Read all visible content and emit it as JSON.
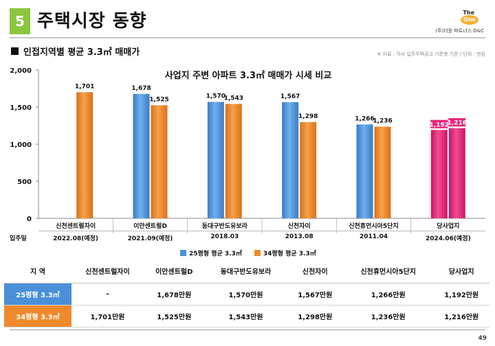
{
  "header": {
    "section_number": "5",
    "title": "주택시장 동향",
    "logo": {
      "line1": "The",
      "line2": "One",
      "line3": "(주)더원 파트너스 D&C"
    }
  },
  "subtitle": "인접지역별 평균 3.3㎡ 매매가",
  "source_note": "※ 자료 : 각사 입주주택공고 기준층 기준 / 단위 : 만원",
  "colors": {
    "series25": "#4a90d9",
    "series34": "#ef8a2c",
    "highlight": "#e8257a",
    "badge": "#8cc63f"
  },
  "chart_data": {
    "type": "bar",
    "title": "사업지 주변 아파트 3.3㎡ 매매가 시세 비교",
    "categories": [
      "신천센트럴자이",
      "이안센트럴D",
      "동대구반도유보라",
      "신천자이",
      "신천휴먼시아5단지",
      "당사업지"
    ],
    "series": [
      {
        "name": "25평형 평균 3.3㎡",
        "values": [
          null,
          1678,
          1570,
          1567,
          1266,
          1192
        ]
      },
      {
        "name": "34평형 평균 3.3㎡",
        "values": [
          1701,
          1525,
          1543,
          1298,
          1236,
          1216
        ]
      }
    ],
    "highlight_category": "당사업지",
    "ylim": [
      0,
      2000
    ],
    "yticks": [
      0,
      500,
      1000,
      1500,
      2000
    ],
    "ytick_labels": [
      "0",
      "500",
      "1,000",
      "1,500",
      "2,000"
    ],
    "value_labels": [
      [
        null,
        "1,678",
        "1,570",
        "1,567",
        "1,266",
        "1,192"
      ],
      [
        "1,701",
        "1,525",
        "1,543",
        "1,298",
        "1,236",
        "1,216"
      ]
    ],
    "legend_position": "bottom"
  },
  "move_in": {
    "label": "입주일",
    "dates": [
      "2022.08(예정)",
      "2021.09(예정)",
      "2018.03",
      "2013.08",
      "2011.04",
      "2024.06(예정)"
    ]
  },
  "table": {
    "headers": [
      "지  역",
      "신천센트럴자이",
      "이안센트럴D",
      "동대구반도유보라",
      "신천자이",
      "신천휴먼시아5단지",
      "당사업지"
    ],
    "rows": [
      {
        "label": "25평형 3.3㎡",
        "cells": [
          "–",
          "1,678만원",
          "1,570만원",
          "1,567만원",
          "1,266만원",
          "1,192만원"
        ]
      },
      {
        "label": "34평형 3.3㎡",
        "cells": [
          "1,701만원",
          "1,525만원",
          "1,543만원",
          "1,298만원",
          "1,236만원",
          "1,216만원"
        ]
      }
    ]
  },
  "page_number": "49"
}
